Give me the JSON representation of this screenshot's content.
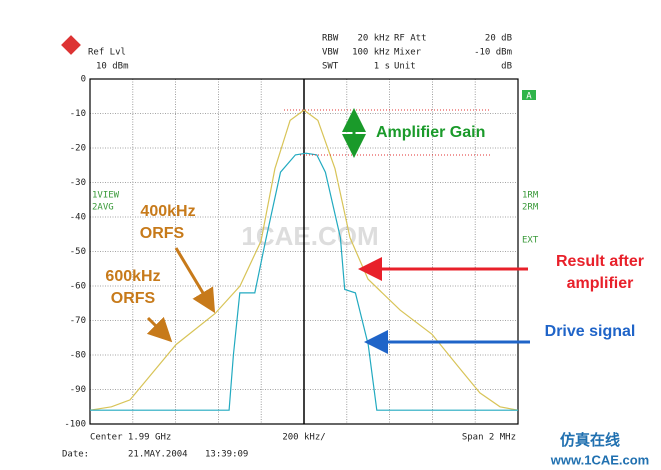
{
  "chart_data": {
    "type": "line",
    "header": {
      "ref_label": "Ref Lvl",
      "ref_value": "10 dBm",
      "settings": [
        [
          "RBW",
          "20 kHz",
          "RF Att",
          "20 dB"
        ],
        [
          "VBW",
          "100 kHz",
          "Mixer",
          "-10 dBm"
        ],
        [
          "SWT",
          "1 s",
          "Unit",
          "dB"
        ]
      ]
    },
    "trace_marker": "A",
    "left_labels": [
      "1VIEW",
      "2AVG"
    ],
    "right_labels": [
      "1RM",
      "2RM",
      "EXT"
    ],
    "footer": {
      "center": "Center 1.99 GHz",
      "per_div": "200 kHz/",
      "span": "Span 2 MHz",
      "date_label": "Date:",
      "date": "21.MAY.2004",
      "time": "13:39:09"
    },
    "annotations": {
      "gain": "Amplifier Gain",
      "result": [
        "Result after",
        "amplifier"
      ],
      "drive": "Drive signal",
      "orfs400": [
        "400kHz",
        "ORFS"
      ],
      "orfs600": [
        "600kHz",
        "ORFS"
      ]
    },
    "watermark": "1CAE.COM",
    "site": "www.1CAE.com",
    "site_cn": "仿真在线",
    "xlim": [
      -1000,
      1000
    ],
    "xticks": [
      -1000,
      -800,
      -600,
      -400,
      -200,
      0,
      200,
      400,
      600,
      800,
      1000
    ],
    "ylim": [
      -100,
      0
    ],
    "yticks": [
      0,
      -10,
      -20,
      -30,
      -40,
      -50,
      -60,
      -70,
      -80,
      -90,
      -100
    ],
    "grid": true,
    "series": [
      {
        "name": "Result after amplifier",
        "color": "#d8c458",
        "x": [
          -1000,
          -900,
          -813,
          -598,
          -416,
          -299,
          -201,
          -136,
          -65,
          0,
          65,
          145,
          215,
          299,
          449,
          598,
          729,
          822,
          916,
          1000
        ],
        "values": [
          -96,
          -95,
          -93,
          -77,
          -68,
          -60,
          -47,
          -26,
          -12,
          -9,
          -12,
          -26,
          -46,
          -58,
          -67,
          -74,
          -84,
          -91,
          -95,
          -96
        ]
      },
      {
        "name": "Drive signal",
        "color": "#22aac0",
        "x": [
          -1000,
          -350,
          -330,
          -300,
          -230,
          -180,
          -110,
          -40,
          10,
          60,
          100,
          170,
          190,
          240,
          300,
          340,
          1000
        ],
        "values": [
          -96,
          -96,
          -80,
          -62,
          -62,
          -47,
          -27,
          -22,
          -21.5,
          -22,
          -27,
          -46,
          -61,
          -62,
          -77,
          -96,
          -96
        ]
      }
    ]
  }
}
